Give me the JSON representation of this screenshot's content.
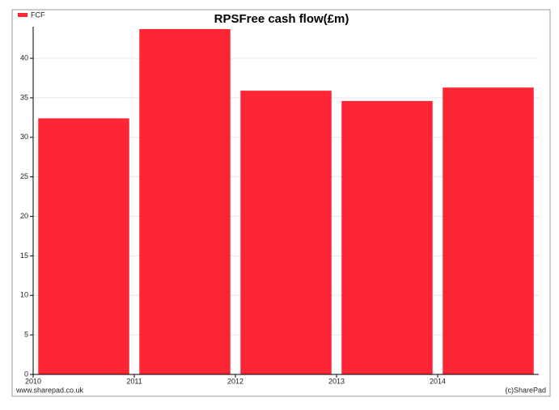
{
  "chart_data": {
    "type": "bar",
    "title": "RPSFree cash flow(£m)",
    "x": [
      2010,
      2011,
      2012,
      2013,
      2014
    ],
    "series": [
      {
        "name": "FCF",
        "color": "#fe2535",
        "values": [
          32.4,
          43.7,
          35.9,
          34.6,
          36.3
        ]
      }
    ],
    "xlim": [
      2010,
      2015
    ],
    "xticks": [
      2010,
      2011,
      2012,
      2013,
      2014
    ],
    "ylim": [
      0,
      44
    ],
    "yticks": [
      0,
      5,
      10,
      15,
      20,
      25,
      30,
      35,
      40
    ],
    "grid": true,
    "legend": "top-left",
    "source": "www.sharepad.co.uk",
    "credit": "(c)SharePad"
  }
}
